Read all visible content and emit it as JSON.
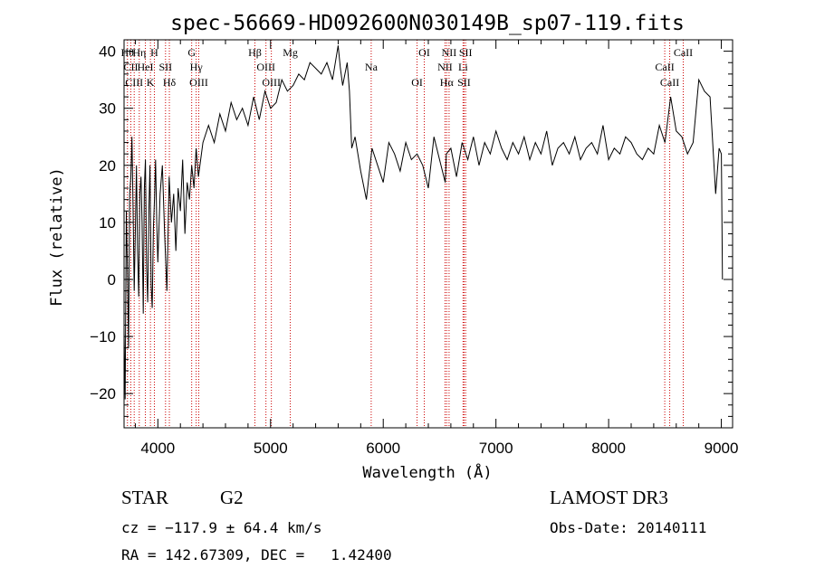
{
  "chart_data": {
    "type": "line",
    "title": "spec-56669-HD092600N030149B_sp07-119.fits",
    "xlabel": "Wavelength (Å)",
    "ylabel": "Flux (relative)",
    "xlim": [
      3700,
      9100
    ],
    "ylim": [
      -26,
      42
    ],
    "xticks": [
      4000,
      5000,
      6000,
      7000,
      8000,
      9000
    ],
    "yticks": [
      -20,
      -10,
      0,
      10,
      20,
      30,
      40
    ],
    "series": [
      {
        "color": "#000000",
        "x": [
          3700,
          3710,
          3720,
          3730,
          3740,
          3750,
          3760,
          3770,
          3780,
          3790,
          3800,
          3810,
          3820,
          3830,
          3840,
          3850,
          3860,
          3870,
          3880,
          3890,
          3900,
          3910,
          3920,
          3930,
          3940,
          3950,
          3960,
          3970,
          3980,
          3990,
          4000,
          4020,
          4040,
          4060,
          4080,
          4100,
          4120,
          4140,
          4160,
          4180,
          4200,
          4220,
          4240,
          4260,
          4280,
          4300,
          4320,
          4340,
          4360,
          4380,
          4400,
          4450,
          4500,
          4550,
          4600,
          4650,
          4700,
          4750,
          4800,
          4850,
          4900,
          4950,
          5000,
          5050,
          5100,
          5150,
          5200,
          5250,
          5300,
          5350,
          5400,
          5450,
          5500,
          5550,
          5600,
          5620,
          5640,
          5660,
          5680,
          5700,
          5720,
          5750,
          5800,
          5850,
          5900,
          5950,
          6000,
          6050,
          6100,
          6150,
          6200,
          6250,
          6300,
          6350,
          6400,
          6450,
          6500,
          6550,
          6560,
          6600,
          6650,
          6700,
          6750,
          6800,
          6850,
          6900,
          6950,
          7000,
          7050,
          7100,
          7150,
          7200,
          7250,
          7300,
          7350,
          7400,
          7450,
          7500,
          7550,
          7600,
          7650,
          7700,
          7750,
          7800,
          7850,
          7900,
          7950,
          8000,
          8050,
          8100,
          8150,
          8200,
          8250,
          8300,
          8350,
          8400,
          8450,
          8500,
          8550,
          8600,
          8650,
          8700,
          8750,
          8800,
          8850,
          8900,
          8950,
          8980,
          9000,
          9010
        ],
        "y": [
          -9,
          -21,
          12,
          2,
          -12,
          15,
          18,
          25,
          12,
          -2,
          8,
          20,
          5,
          -3,
          15,
          18,
          10,
          -6,
          16,
          21,
          2,
          -4,
          12,
          20,
          -1,
          -5,
          9,
          14,
          21,
          10,
          3,
          15,
          20,
          8,
          -2,
          18,
          10,
          15,
          5,
          16,
          12,
          21,
          8,
          17,
          14,
          20,
          16,
          23,
          18,
          21,
          24,
          27,
          24,
          29,
          26,
          31,
          28,
          30,
          27,
          32,
          28,
          33,
          30,
          31,
          35,
          33,
          34,
          36,
          35,
          38,
          37,
          36,
          38,
          35,
          41,
          37,
          34,
          36,
          38,
          33,
          23,
          25,
          19,
          14,
          23,
          20,
          17,
          24,
          22,
          19,
          24,
          21,
          22,
          20,
          16,
          25,
          21,
          17,
          22,
          23,
          18,
          24,
          21,
          25,
          20,
          24,
          22,
          26,
          23,
          21,
          24,
          22,
          25,
          21,
          24,
          22,
          26,
          20,
          23,
          24,
          22,
          25,
          21,
          23,
          24,
          22,
          27,
          21,
          23,
          22,
          25,
          24,
          22,
          21,
          23,
          22,
          27,
          24,
          32,
          26,
          25,
          22,
          24,
          35,
          33,
          32,
          15,
          23,
          22,
          0
        ]
      }
    ],
    "line_labels": [
      {
        "x": 3730,
        "label": "Hθ"
      },
      {
        "x": 3760,
        "label": "CII"
      },
      {
        "x": 3790,
        "label": "CIII"
      },
      {
        "x": 3835,
        "label": "Hη"
      },
      {
        "x": 3889,
        "label": "HeI"
      },
      {
        "x": 3934,
        "label": "K"
      },
      {
        "x": 3969,
        "label": "H"
      },
      {
        "x": 4068,
        "label": "SII"
      },
      {
        "x": 4102,
        "label": "Hδ"
      },
      {
        "x": 4300,
        "label": "G"
      },
      {
        "x": 4340,
        "label": "Hγ"
      },
      {
        "x": 4363,
        "label": "OIII"
      },
      {
        "x": 4861,
        "label": "Hβ"
      },
      {
        "x": 4959,
        "label": "OIII"
      },
      {
        "x": 5007,
        "label": "OIII"
      },
      {
        "x": 5175,
        "label": "Mg"
      },
      {
        "x": 5893,
        "label": "Na"
      },
      {
        "x": 6300,
        "label": "OI"
      },
      {
        "x": 6364,
        "label": "OI"
      },
      {
        "x": 6548,
        "label": "NII"
      },
      {
        "x": 6563,
        "label": "Hα"
      },
      {
        "x": 6584,
        "label": "NII"
      },
      {
        "x": 6708,
        "label": "Li"
      },
      {
        "x": 6717,
        "label": "SII"
      },
      {
        "x": 6731,
        "label": "SII"
      },
      {
        "x": 8498,
        "label": "CaII"
      },
      {
        "x": 8542,
        "label": "CaII"
      },
      {
        "x": 8662,
        "label": "CaII"
      }
    ],
    "line_color": "#cc0000"
  },
  "info": {
    "object_class": "STAR",
    "subclass": "G2",
    "survey": "LAMOST DR3",
    "redshift_line": "cz = −117.9 ± 64.4 km/s",
    "obs_date_line": "Obs-Date: 20140111",
    "coords_line": "RA = 142.67309, DEC =   1.42400"
  }
}
